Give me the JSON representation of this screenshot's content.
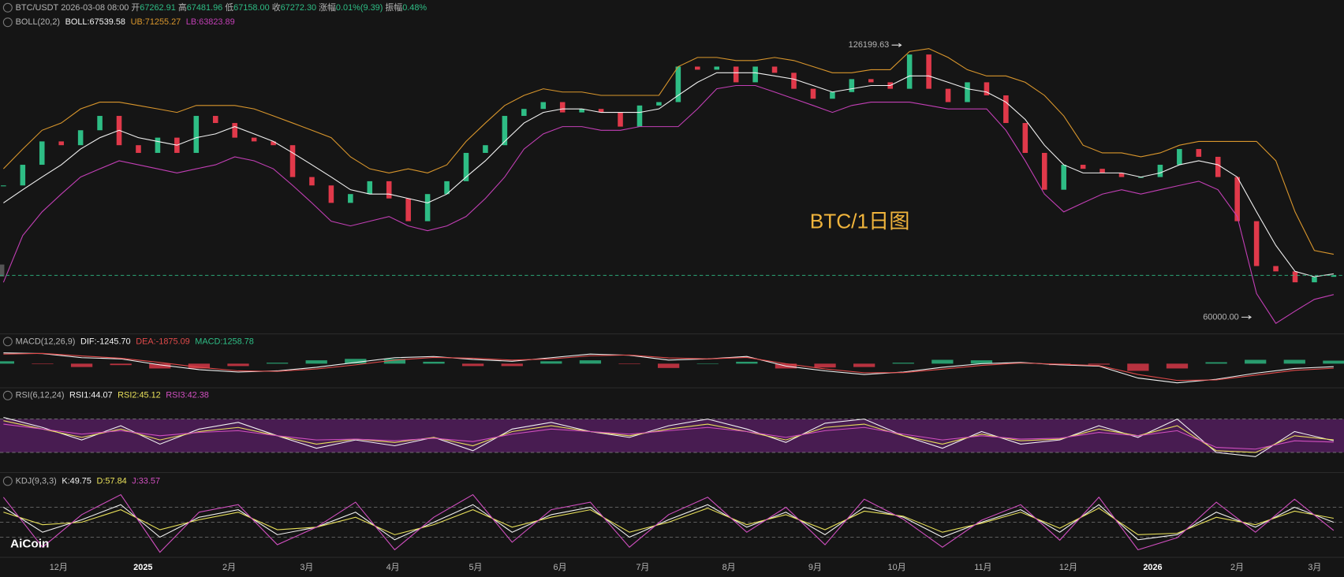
{
  "header": {
    "symbol": "BTC/USDT",
    "datetime": "2026-03-08 08:00",
    "open_label": "开",
    "open": "67262.91",
    "high_label": "高",
    "high": "67481.96",
    "low_label": "低",
    "low": "67158.00",
    "close_label": "收",
    "close": "67272.30",
    "change_label": "涨幅",
    "change": "0.01%(9.39)",
    "amplitude_label": "振幅",
    "amplitude": "0.48%"
  },
  "watermark": "BTC/1日图",
  "brand": "AiCoin",
  "time_axis": [
    "12月",
    "2025",
    "2月",
    "3月",
    "4月",
    "5月",
    "6月",
    "7月",
    "8月",
    "9月",
    "10月",
    "11月",
    "12月",
    "2026",
    "2月",
    "3月"
  ],
  "chart_data": [
    {
      "type": "candlestick",
      "title": "BOLL(20,2)",
      "log_scale": true,
      "ylim": [
        58000,
        130000
      ],
      "colors": {
        "up": "#2ebd85",
        "down": "#e0394a"
      },
      "close": [
        86000,
        91000,
        97000,
        96000,
        100000,
        104000,
        96000,
        94000,
        98000,
        94000,
        104000,
        102000,
        98000,
        97000,
        96000,
        88000,
        86000,
        82000,
        84000,
        87000,
        83000,
        78000,
        84000,
        87000,
        94000,
        96000,
        104000,
        106000,
        108000,
        105000,
        106000,
        105000,
        101000,
        107000,
        108000,
        119000,
        118000,
        119000,
        114000,
        119000,
        117000,
        112000,
        109000,
        111000,
        115000,
        114000,
        112000,
        123000,
        112000,
        108000,
        114000,
        110000,
        102000,
        94000,
        85000,
        91000,
        90000,
        89000,
        88000,
        88000,
        91000,
        95000,
        93000,
        88000,
        78000,
        69000,
        68000,
        66000,
        67000,
        67272.3
      ],
      "series": [
        {
          "name": "BOLL:67539.58",
          "color": "#f2f2f2",
          "values": [
            82000,
            85000,
            88000,
            91000,
            95000,
            98000,
            100000,
            98000,
            97000,
            96000,
            98000,
            99000,
            101000,
            99000,
            97000,
            94000,
            91000,
            88000,
            85000,
            84000,
            84000,
            83000,
            82000,
            84000,
            88000,
            92000,
            97000,
            102000,
            105000,
            106000,
            106000,
            105000,
            105000,
            105000,
            106000,
            110000,
            114000,
            117000,
            117000,
            117000,
            116000,
            115000,
            113000,
            111000,
            112000,
            113000,
            113000,
            116000,
            116000,
            114000,
            112000,
            111000,
            108000,
            103000,
            96000,
            91000,
            89000,
            89000,
            89000,
            88000,
            89000,
            91000,
            92000,
            91000,
            88000,
            80000,
            73000,
            68000,
            67000,
            67539.58
          ]
        },
        {
          "name": "UB:71255.27",
          "color": "#d9962c",
          "values": [
            90000,
            95000,
            100000,
            102000,
            106000,
            108000,
            108000,
            107000,
            106000,
            105000,
            107000,
            107000,
            107000,
            106000,
            104000,
            102000,
            100000,
            98000,
            93000,
            90000,
            89000,
            90000,
            89000,
            91000,
            97000,
            102000,
            107000,
            110000,
            112000,
            111000,
            111000,
            110000,
            110000,
            110000,
            110000,
            119000,
            122000,
            122000,
            121000,
            121000,
            122000,
            121000,
            119000,
            117000,
            117000,
            118000,
            118000,
            124000,
            125000,
            122000,
            118000,
            116000,
            116000,
            114000,
            110000,
            104000,
            96000,
            94000,
            94000,
            93000,
            94000,
            96000,
            97000,
            97000,
            97000,
            97000,
            92000,
            80000,
            72000,
            71255.27
          ]
        },
        {
          "name": "LB:63823.89",
          "color": "#c23fb5",
          "values": [
            66000,
            75000,
            80000,
            84000,
            88000,
            90000,
            92000,
            91000,
            90000,
            89000,
            90000,
            91000,
            93000,
            92000,
            90000,
            86000,
            82000,
            78000,
            77000,
            78000,
            79000,
            77000,
            76000,
            77000,
            79000,
            83000,
            88000,
            95000,
            99000,
            101000,
            101000,
            100000,
            100000,
            101000,
            101000,
            101000,
            106000,
            112000,
            113000,
            113000,
            111000,
            109000,
            107000,
            105000,
            107000,
            108000,
            108000,
            108000,
            107000,
            106000,
            106000,
            106000,
            100000,
            92000,
            84000,
            80000,
            82000,
            84000,
            85000,
            84000,
            85000,
            86000,
            87000,
            85000,
            79000,
            64000,
            59000,
            61000,
            63000,
            63823.89
          ]
        }
      ],
      "annotations": [
        {
          "label": "126199.63",
          "value": 126199.63
        },
        {
          "label": "60000.00",
          "value": 60000
        }
      ]
    },
    {
      "type": "macd",
      "title": "MACD(12,26,9)",
      "ylim": [
        -9000,
        6000
      ],
      "series": [
        {
          "name": "DIF:-1245.70",
          "color": "#f2f2f2",
          "values": [
            4500,
            4200,
            2500,
            2000,
            -500,
            -2500,
            -3500,
            -3000,
            -1500,
            500,
            2500,
            3000,
            1800,
            1000,
            2500,
            4000,
            3500,
            1500,
            2000,
            3000,
            -1000,
            -3000,
            -4500,
            -3500,
            -1500,
            0,
            500,
            -500,
            -1000,
            -6000,
            -8000,
            -6500,
            -4000,
            -2000,
            -1245.7
          ]
        },
        {
          "name": "DEA:-1875.09",
          "color": "#e04a4a",
          "values": [
            4000,
            4300,
            3200,
            2300,
            500,
            -1500,
            -3000,
            -3200,
            -2200,
            -500,
            1500,
            2600,
            2300,
            1500,
            2000,
            3300,
            3600,
            2400,
            2000,
            2600,
            0,
            -2200,
            -3800,
            -3700,
            -2300,
            -700,
            300,
            -200,
            -800,
            -4500,
            -7000,
            -6800,
            -4800,
            -2800,
            -1875.09
          ]
        },
        {
          "name": "MACD:1258.78",
          "color": "#2ebd85",
          "kind": "bar",
          "colors": {
            "up": "#2ebd85",
            "down": "#e0394a"
          },
          "values": [
            1000,
            -200,
            -1400,
            -600,
            -2000,
            -2000,
            -1000,
            400,
            1400,
            2000,
            2000,
            800,
            -1000,
            -1000,
            1000,
            1400,
            -200,
            -1800,
            0,
            800,
            -2000,
            -1600,
            -1400,
            400,
            1600,
            1400,
            400,
            -600,
            -400,
            -3000,
            -2000,
            600,
            1600,
            1600,
            1258.78
          ]
        }
      ]
    },
    {
      "type": "rsi",
      "title": "RSI(6,12,24)",
      "ylim": [
        10,
        90
      ],
      "levels": [
        70,
        30
      ],
      "band_color": "#5a1f66",
      "series": [
        {
          "name": "RSI1:44.07",
          "color": "#f2f2f2",
          "values": [
            72,
            60,
            45,
            62,
            40,
            58,
            66,
            50,
            35,
            45,
            38,
            48,
            32,
            58,
            66,
            55,
            48,
            62,
            70,
            58,
            42,
            65,
            70,
            50,
            35,
            55,
            40,
            45,
            62,
            48,
            70,
            30,
            25,
            55,
            44.07
          ]
        },
        {
          "name": "RSI2:45.12",
          "color": "#e8e05a",
          "values": [
            68,
            58,
            48,
            58,
            45,
            55,
            60,
            50,
            40,
            46,
            42,
            48,
            38,
            55,
            62,
            55,
            50,
            58,
            64,
            55,
            45,
            60,
            64,
            50,
            40,
            52,
            44,
            46,
            58,
            50,
            62,
            32,
            30,
            50,
            45.12
          ]
        },
        {
          "name": "RSI3:42.38",
          "color": "#d14fc0",
          "values": [
            64,
            58,
            52,
            56,
            50,
            54,
            56,
            50,
            45,
            46,
            44,
            47,
            43,
            52,
            58,
            55,
            52,
            56,
            60,
            55,
            48,
            56,
            60,
            52,
            45,
            50,
            46,
            47,
            54,
            50,
            56,
            36,
            34,
            44,
            42.38
          ]
        }
      ]
    },
    {
      "type": "kdj",
      "title": "KDJ(9,3,3)",
      "ylim": [
        -15,
        115
      ],
      "levels": [
        80,
        50,
        20
      ],
      "series": [
        {
          "name": "K:49.75",
          "color": "#f2f2f2",
          "values": [
            80,
            30,
            55,
            85,
            20,
            60,
            75,
            25,
            40,
            70,
            15,
            50,
            85,
            30,
            65,
            80,
            20,
            55,
            85,
            40,
            70,
            25,
            80,
            60,
            20,
            50,
            75,
            30,
            85,
            15,
            25,
            70,
            40,
            80,
            49.75
          ]
        },
        {
          "name": "D:57.84",
          "color": "#e8e05a",
          "values": [
            70,
            45,
            50,
            75,
            35,
            55,
            70,
            35,
            40,
            60,
            25,
            45,
            75,
            40,
            60,
            75,
            30,
            50,
            78,
            45,
            65,
            35,
            72,
            62,
            30,
            48,
            70,
            38,
            78,
            25,
            28,
            60,
            45,
            72,
            57.84
          ]
        },
        {
          "name": "J:33.57",
          "color": "#d14fc0",
          "values": [
            100,
            0,
            65,
            105,
            -10,
            70,
            85,
            5,
            40,
            90,
            -5,
            60,
            105,
            10,
            75,
            90,
            0,
            65,
            100,
            30,
            80,
            5,
            96,
            56,
            0,
            54,
            85,
            14,
            100,
            -5,
            19,
            90,
            30,
            96,
            33.57
          ]
        }
      ]
    }
  ]
}
